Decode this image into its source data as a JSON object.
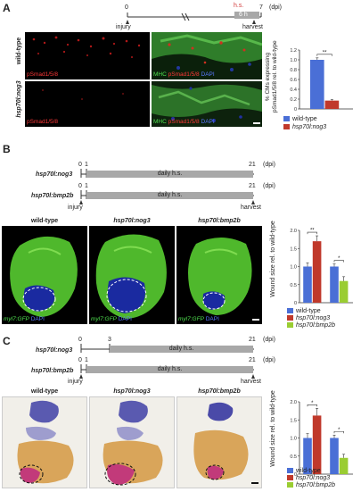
{
  "panelA": {
    "label": "A",
    "timeline": {
      "t0": "0",
      "t7": "7",
      "unit": "(dpi)",
      "injury": "injury",
      "harvest": "harvest",
      "hs": "h.s.",
      "box": "6 h"
    },
    "row_wt": "wild-type",
    "row_nog": "hsp70l:nog3",
    "cap_red": "pSmad1/5/8",
    "cap_mhc": "MHC",
    "cap_dapi": "DAPI",
    "chart_ylabel_1": "% CMs expressing",
    "chart_ylabel_2": "pSmad1/5/8 rel. to wild-type",
    "sig": "**",
    "legend_wt": "wild-type",
    "legend_nog": "hsp70l:nog3"
  },
  "panelB": {
    "label": "B",
    "row1": "hsp70l:nog3",
    "row2": "hsp70l:bmp2b",
    "t0": "0",
    "t1": "1",
    "t21": "21",
    "unit": "(dpi)",
    "bar_text": "daily h.s.",
    "injury": "injury",
    "harvest": "harvest",
    "col_wt": "wild-type",
    "col_nog": "hsp70l:nog3",
    "col_bmp": "hsp70l:bmp2b",
    "cap_gfp": "myl7:GFP",
    "cap_dapi": "DAPI",
    "ylabel": "Wound size rel. to wild-type",
    "sig1": "**",
    "sig2": "*",
    "legend_wt": "wild-type",
    "legend_nog": "hsp70l:nog3",
    "legend_bmp": "hsp70l:bmp2b"
  },
  "panelC": {
    "label": "C",
    "row1": "hsp70l:nog3",
    "row2": "hsp70l:bmp2b",
    "t0": "0",
    "t3": "3",
    "t1": "1",
    "t21": "21",
    "unit": "(dpi)",
    "bar_text": "daily h.s.",
    "injury": "injury",
    "harvest": "harvest",
    "col_wt": "wild-type",
    "col_nog": "hsp70l:nog3",
    "col_bmp": "hsp70l:bmp2b",
    "ylabel": "Wound size rel. to wild-type",
    "sig1": "*",
    "sig2": "*",
    "legend_wt": "wild-type",
    "legend_nog": "hsp70l:nog3",
    "legend_bmp": "hsp70l:bmp2b"
  },
  "colors": {
    "blue": "#4a6fd6",
    "red": "#c0392b",
    "green": "#9acd32"
  },
  "chart_data": [
    {
      "type": "bar",
      "categories": [
        "wild-type",
        "hsp70l:nog3"
      ],
      "values": [
        1.0,
        0.17
      ],
      "errors": [
        0.04,
        0.02
      ],
      "ylabel": "% CMs expressing pSmad1/5/8 rel. to wild-type",
      "ylim": [
        0,
        1.2
      ],
      "yticks": [
        "0",
        "0.2",
        "0.4",
        "0.6",
        "0.8",
        "1.0",
        "1.2"
      ]
    },
    {
      "type": "bar",
      "groups": [
        {
          "categories": [
            "wild-type",
            "hsp70l:nog3"
          ],
          "values": [
            1.0,
            1.7
          ],
          "errors": [
            0.1,
            0.15
          ]
        },
        {
          "categories": [
            "wild-type",
            "hsp70l:bmp2b"
          ],
          "values": [
            1.0,
            0.6
          ],
          "errors": [
            0.07,
            0.12
          ]
        }
      ],
      "ylabel": "Wound size rel. to wild-type",
      "ylim": [
        0,
        2.0
      ],
      "yticks": [
        "0",
        "0.5",
        "1.0",
        "1.5",
        "2.0"
      ]
    },
    {
      "type": "bar",
      "groups": [
        {
          "categories": [
            "wild-type",
            "hsp70l:nog3"
          ],
          "values": [
            1.0,
            1.62
          ],
          "errors": [
            0.12,
            0.2
          ]
        },
        {
          "categories": [
            "wild-type",
            "hsp70l:bmp2b"
          ],
          "values": [
            1.0,
            0.45
          ],
          "errors": [
            0.08,
            0.1
          ]
        }
      ],
      "ylabel": "Wound size rel. to wild-type",
      "ylim": [
        0,
        2.0
      ],
      "yticks": [
        "0",
        "0.5",
        "1.0",
        "1.5",
        "2.0"
      ]
    }
  ]
}
